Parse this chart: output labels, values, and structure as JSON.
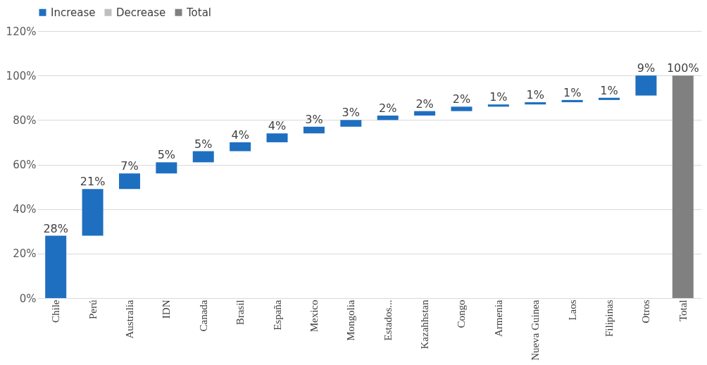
{
  "chart_data": {
    "type": "bar",
    "categories": [
      "Chile",
      "Perú",
      "Australia",
      "IDN",
      "Canada",
      "Brasil",
      "España",
      "Mexico",
      "Mongolia",
      "Estados...",
      "Kazahhstan",
      "Congo",
      "Armenia",
      "Nueva Guinea",
      "Laos",
      "Filipinas",
      "Otros",
      "Total"
    ],
    "series": [
      {
        "name": "Increase",
        "color": "#1f6fc0",
        "base": [
          0,
          28,
          49,
          56,
          61,
          66,
          70,
          74,
          77,
          80,
          82,
          84,
          86,
          87,
          88,
          89,
          91,
          null
        ],
        "values": [
          28,
          21,
          7,
          5,
          5,
          4,
          4,
          3,
          3,
          2,
          2,
          2,
          1,
          1,
          1,
          1,
          9,
          null
        ],
        "value_labels": [
          "28%",
          "21%",
          "7%",
          "5%",
          "5%",
          "4%",
          "4%",
          "3%",
          "3%",
          "2%",
          "2%",
          "2%",
          "1%",
          "1%",
          "1%",
          "1%",
          "9%",
          null
        ]
      },
      {
        "name": "Decrease",
        "color": "#bfbfbf",
        "values": [
          null,
          null,
          null,
          null,
          null,
          null,
          null,
          null,
          null,
          null,
          null,
          null,
          null,
          null,
          null,
          null,
          null,
          null
        ]
      },
      {
        "name": "Total",
        "color": "#808080",
        "values": [
          null,
          null,
          null,
          null,
          null,
          null,
          null,
          null,
          null,
          null,
          null,
          null,
          null,
          null,
          null,
          null,
          null,
          100
        ],
        "value_labels": [
          null,
          null,
          null,
          null,
          null,
          null,
          null,
          null,
          null,
          null,
          null,
          null,
          null,
          null,
          null,
          null,
          null,
          "100%"
        ]
      }
    ],
    "ylim": [
      0,
      120
    ],
    "yticks": [
      {
        "value": 0,
        "label": "0%"
      },
      {
        "value": 20,
        "label": "20%"
      },
      {
        "value": 40,
        "label": "40%"
      },
      {
        "value": 60,
        "label": "60%"
      },
      {
        "value": 80,
        "label": "80%"
      },
      {
        "value": 100,
        "label": "100%"
      },
      {
        "value": 120,
        "label": "120%"
      }
    ],
    "grid": "y",
    "legend": "top"
  }
}
